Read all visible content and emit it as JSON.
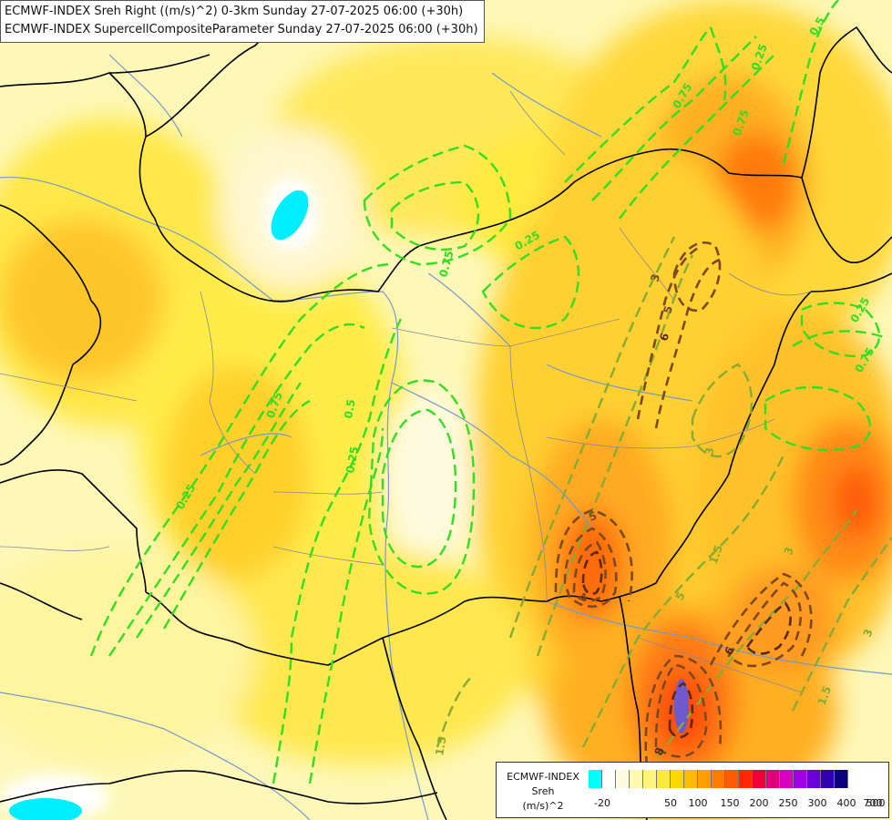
{
  "titles": {
    "line1": "ECMWF-INDEX Sreh Right ((m/s)^2) 0-3km Sunday 27-07-2025 06:00 (+30h)",
    "line2": "ECMWF-INDEX SupercellCompositeParameter Sunday 27-07-2025 06:00 (+30h)"
  },
  "legend": {
    "title1": "ECMWF-INDEX",
    "title2": "Sreh",
    "title3": "(m/s)^2",
    "swatch_colors": [
      "#00ffff",
      "#ffffff",
      "#fffbe0",
      "#fff8b0",
      "#fff280",
      "#ffea3c",
      "#ffd700",
      "#ffbb00",
      "#ffa000",
      "#ff7c00",
      "#ff5a00",
      "#ff2a00",
      "#f00030",
      "#e0007a",
      "#d800c0",
      "#a000e8",
      "#6a00d8",
      "#3000b0",
      "#0a0080"
    ],
    "ticks": [
      "-20",
      "50",
      "100",
      "150",
      "200",
      "250",
      "300",
      "400",
      "500",
      "700"
    ]
  },
  "contour_labels": [
    "0.25",
    "0.75",
    "0.5",
    "0.75",
    "0.25",
    "0.75",
    "0.25",
    "0.5",
    "0.25",
    "0.75",
    "0.25",
    "0.75",
    "3",
    "5",
    "6",
    "5",
    "4",
    "1.5",
    "3",
    "3",
    "5",
    "6",
    "8",
    "1.5",
    "1.5",
    "3"
  ],
  "colors": {
    "contour_green": "#33dd22",
    "contour_olive": "#88aa33",
    "contour_brown": "#7a4a1e",
    "contour_dark": "#5a2a10",
    "borders": "#000000",
    "rivers": "#7799cc"
  }
}
